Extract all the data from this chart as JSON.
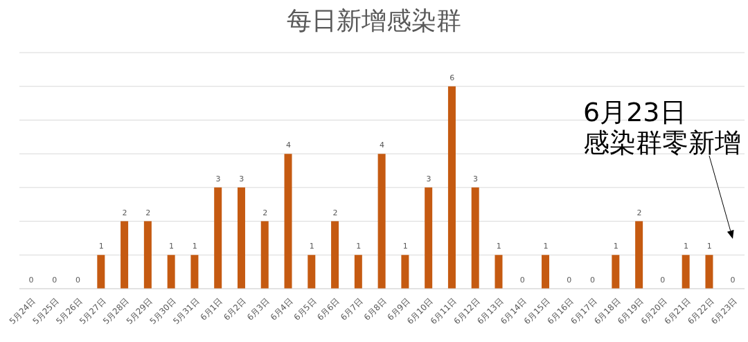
{
  "chart_data": {
    "type": "bar",
    "title": "每日新增感染群",
    "categories": [
      "5月24日",
      "5月25日",
      "5月26日",
      "5月27日",
      "5月28日",
      "5月29日",
      "5月30日",
      "5月31日",
      "6月1日",
      "6月2日",
      "6月3日",
      "6月4日",
      "6月5日",
      "6月6日",
      "6月7日",
      "6月8日",
      "6月9日",
      "6月10日",
      "6月11日",
      "6月12日",
      "6月13日",
      "6月14日",
      "6月15日",
      "6月16日",
      "6月17日",
      "6月18日",
      "6月19日",
      "6月20日",
      "6月21日",
      "6月22日",
      "6月23日"
    ],
    "values": [
      0,
      0,
      0,
      1,
      2,
      2,
      1,
      1,
      3,
      3,
      2,
      4,
      1,
      2,
      1,
      4,
      1,
      3,
      6,
      3,
      1,
      0,
      1,
      0,
      0,
      1,
      2,
      0,
      1,
      1,
      0
    ],
    "color": "#c55a11",
    "ylim": [
      0,
      7
    ],
    "yticks": [
      {
        "value": 0,
        "label": null
      },
      {
        "value": 1,
        "label": null
      },
      {
        "value": 2,
        "label": null
      },
      {
        "value": 3,
        "label": null
      },
      {
        "value": 4,
        "label": null
      },
      {
        "value": 5,
        "label": null
      },
      {
        "value": 6,
        "label": null
      },
      {
        "value": 7,
        "label": null
      }
    ],
    "grid": "y",
    "tick_labels": "x",
    "data_labels": true,
    "annotations": [
      "6月23日",
      "感染群零新增"
    ]
  }
}
